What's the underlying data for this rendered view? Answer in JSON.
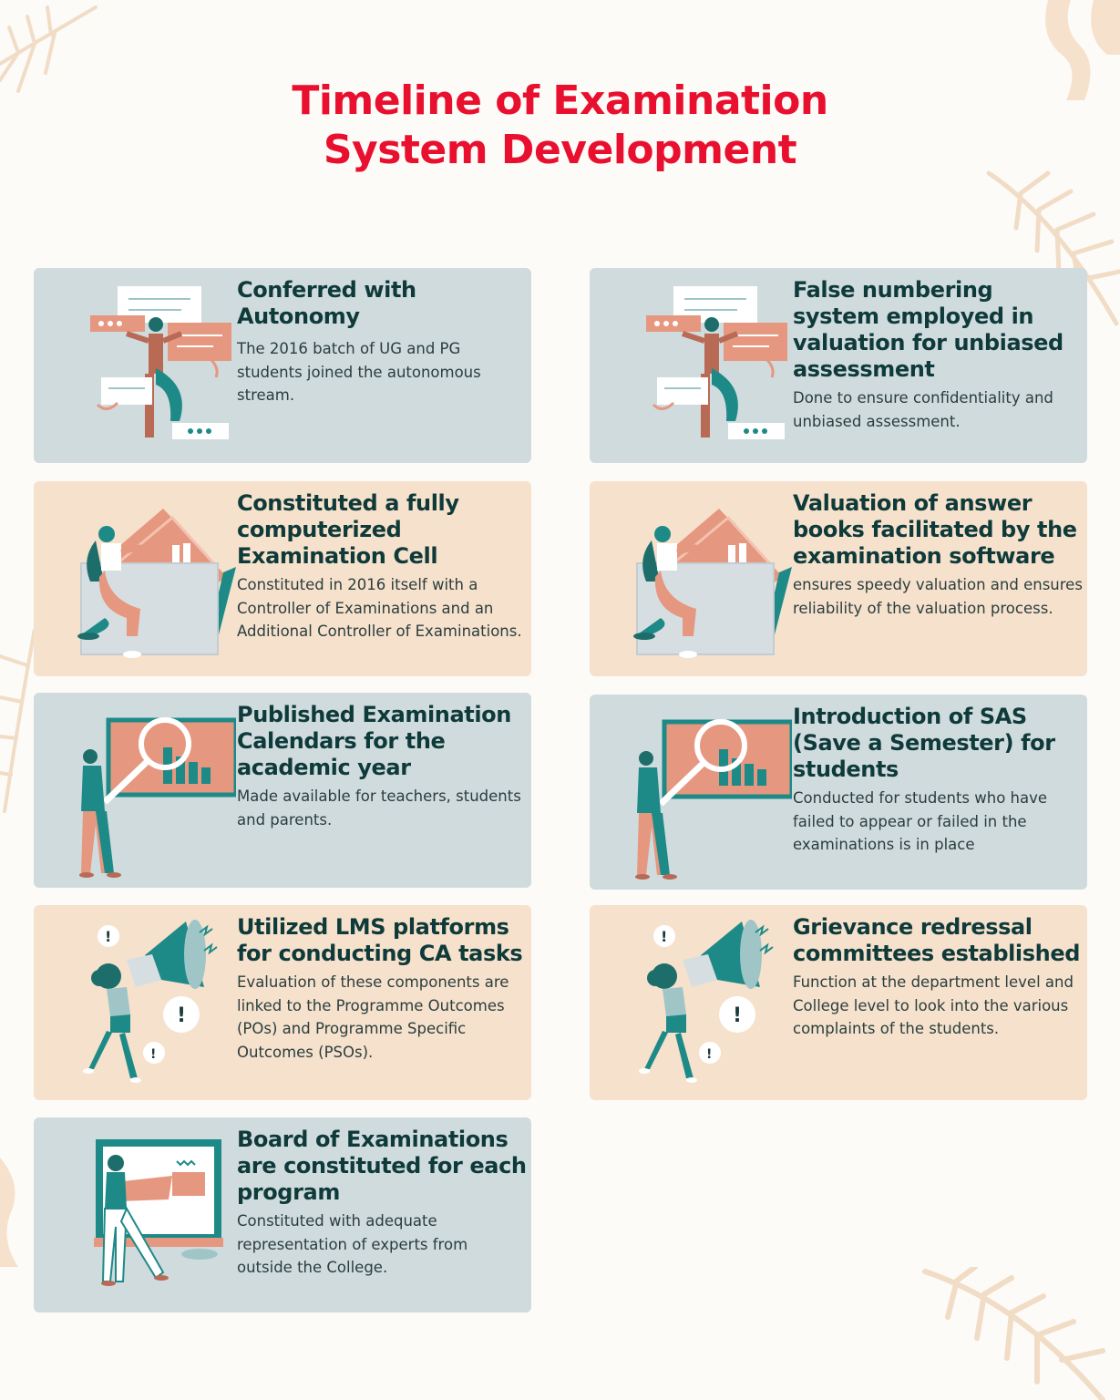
{
  "title": {
    "line1": "Timeline of Examination",
    "line2": "System Development"
  },
  "colors": {
    "title": "#e8102e",
    "card_blue": "#d0dbde",
    "card_peach": "#f6e1cc",
    "heading": "#0f3a3a",
    "teal": "#1d8a87",
    "salmon": "#e6977f"
  },
  "cards": [
    {
      "heading": "Conferred with Autonomy",
      "body": "The 2016 batch of UG and PG students joined the autonomous stream.",
      "illustration": "person-with-floating-cards-icon"
    },
    {
      "heading": "False numbering system employed in valuation for unbiased assessment",
      "body": "Done to ensure confidentiality and unbiased assessment.",
      "illustration": "person-with-floating-cards-icon"
    },
    {
      "heading": "Constituted a fully computerized Examination Cell",
      "body": "Constituted in 2016 itself with a Controller of Examinations and an Additional Controller of Examinations.",
      "illustration": "person-with-folder-icon"
    },
    {
      "heading": "Valuation of answer books facilitated by the examination software",
      "body": "ensures speedy valuation and ensures reliability of the valuation process.",
      "illustration": "person-with-folder-icon"
    },
    {
      "heading": "Published Examination Calendars for the academic year",
      "body": "Made available for teachers, students and parents.",
      "illustration": "person-with-magnifier-chart-icon"
    },
    {
      "heading": "Introduction of SAS (Save a Semester) for students",
      "body": "Conducted for students who have failed to appear or failed in the examinations is in place",
      "illustration": "person-with-magnifier-chart-icon"
    },
    {
      "heading": "Utilized LMS platforms for conducting CA tasks",
      "body": " Evaluation of these components are linked to the Programme Outcomes (POs) and Programme Specific Outcomes (PSOs).",
      "illustration": "person-with-megaphone-icon"
    },
    {
      "heading": "Grievance redressal committees established",
      "body": "Function at the department level and College level to look into the various complaints of the students.",
      "illustration": "person-with-megaphone-icon"
    },
    {
      "heading": "Board of Examinations are constituted for each program",
      "body": " Constituted with adequate representation of experts from outside the College.",
      "illustration": "person-at-presentation-board-icon"
    }
  ]
}
